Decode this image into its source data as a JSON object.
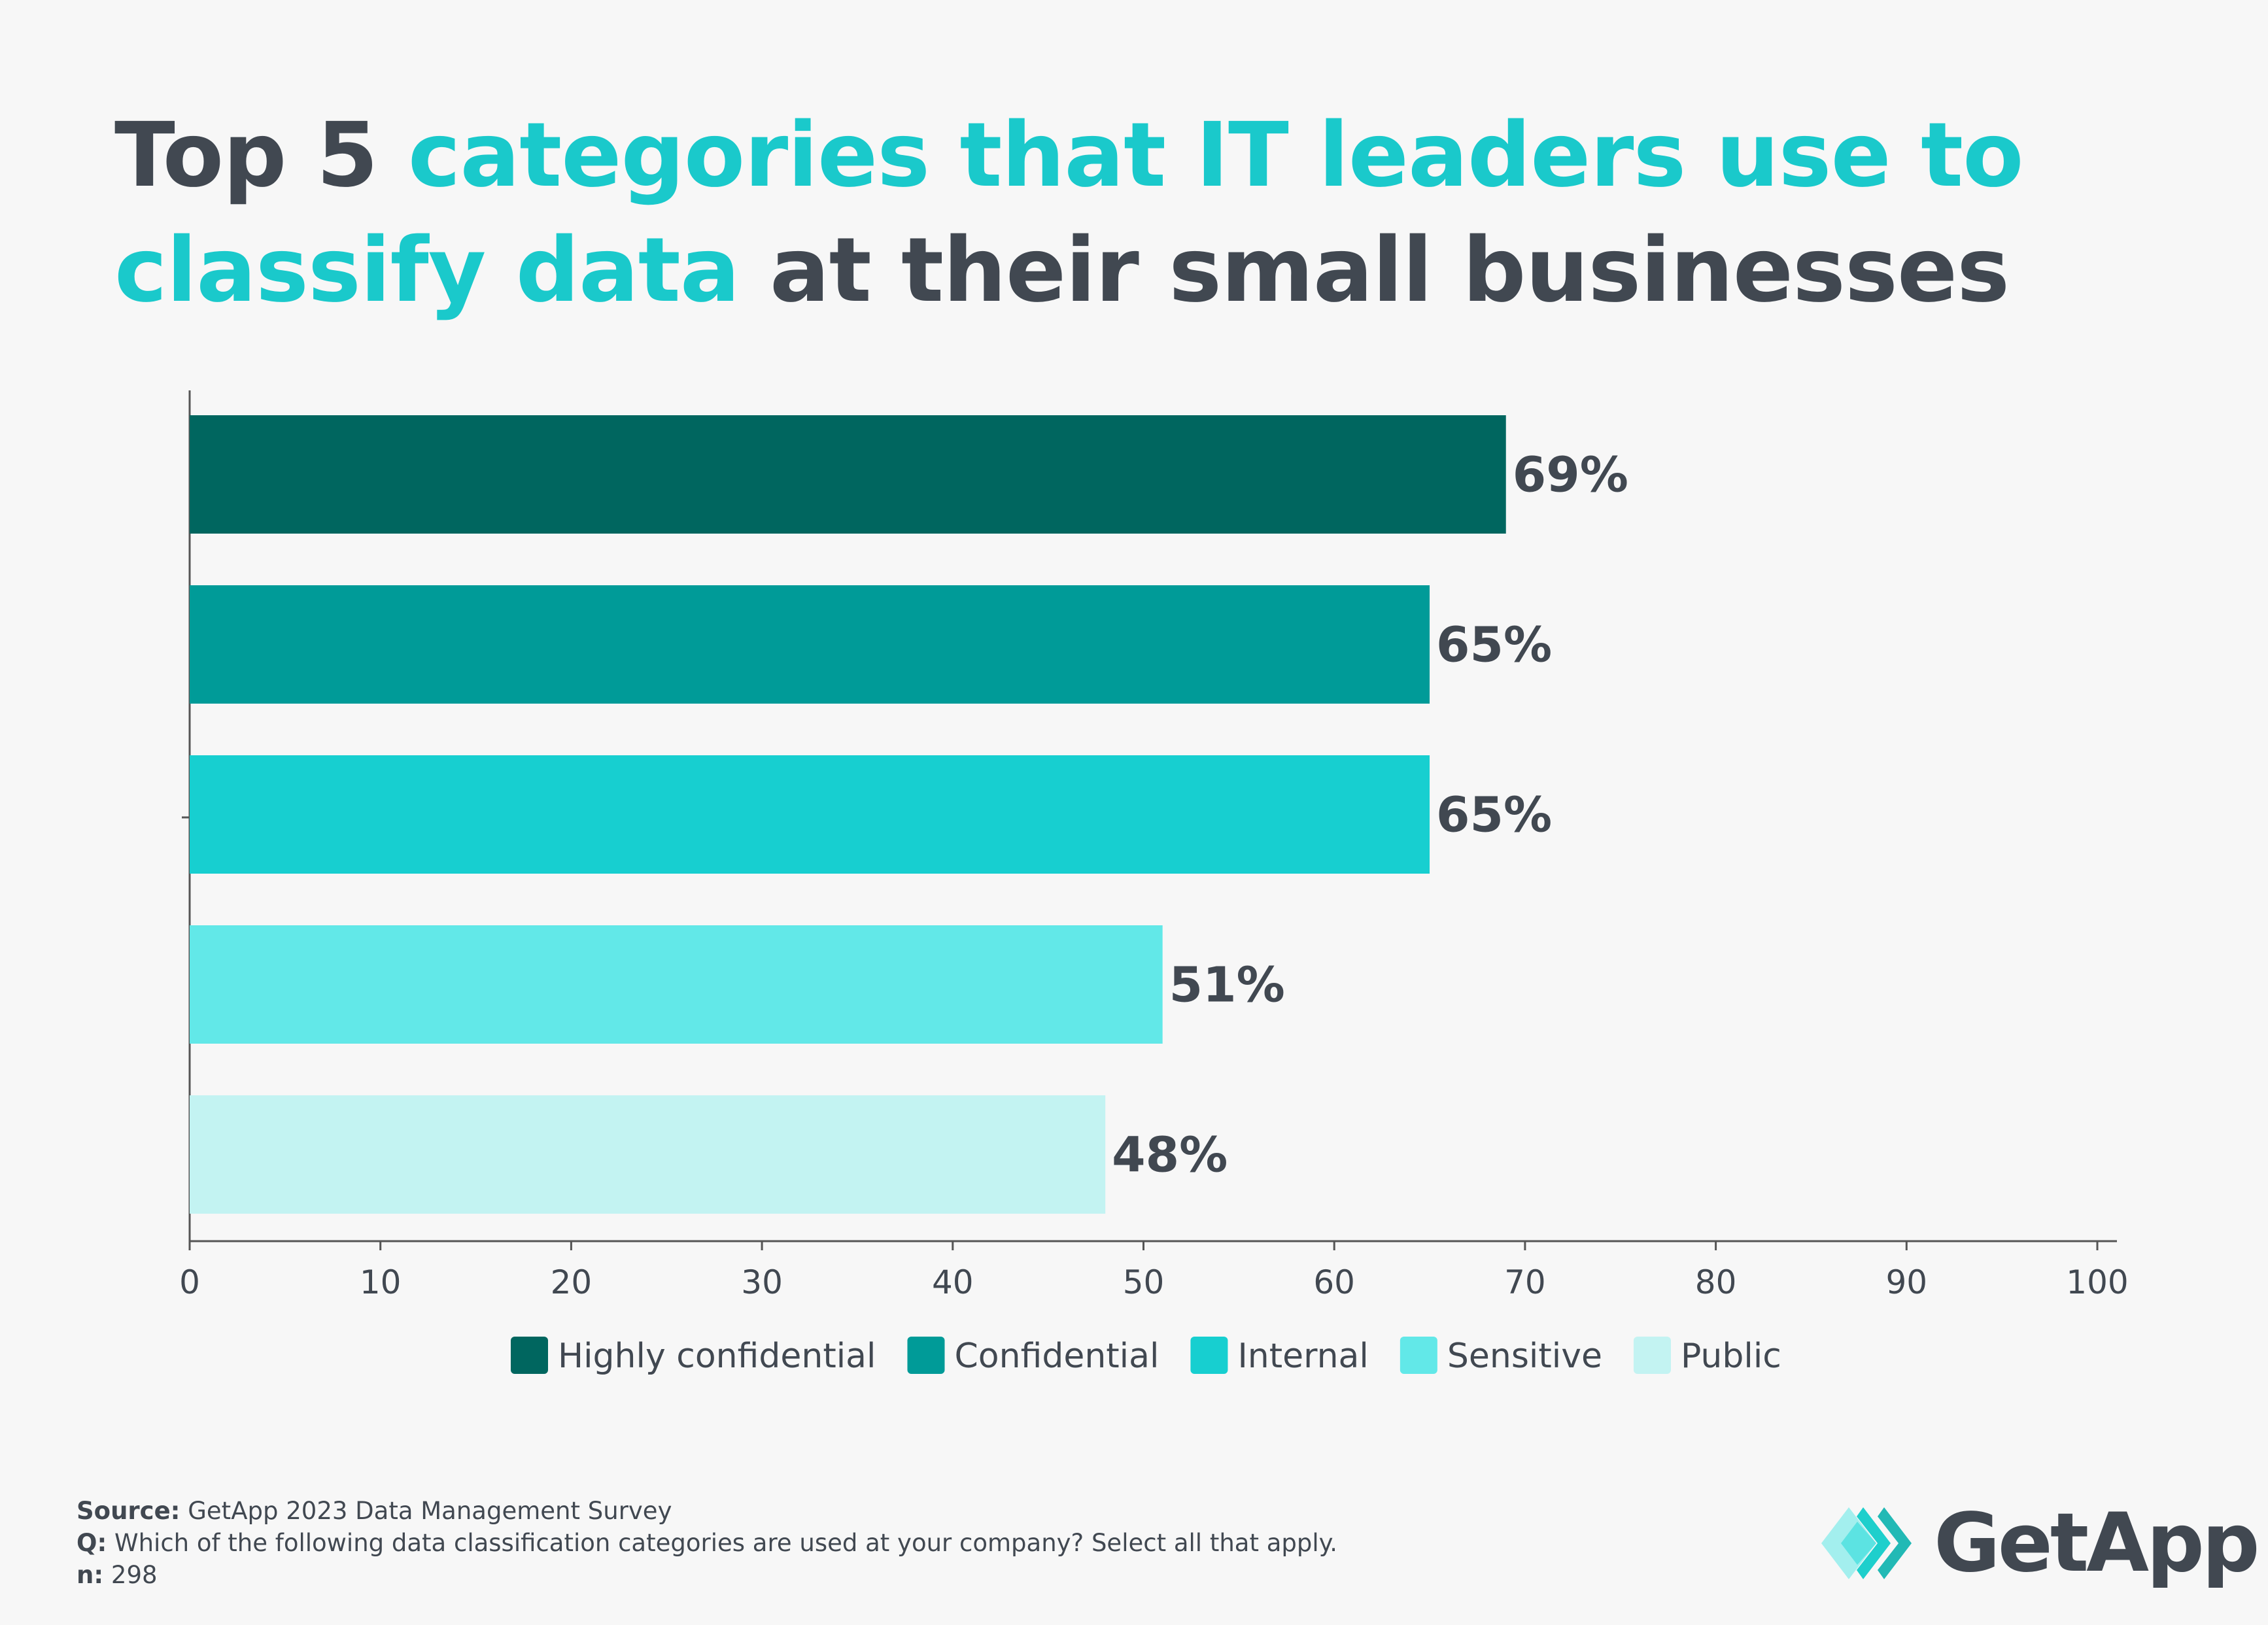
{
  "title": {
    "parts": [
      {
        "text": "Top 5 ",
        "highlight": false
      },
      {
        "text": "categories that IT leaders use to classify data",
        "highlight": true
      },
      {
        "text": " at their small businesses",
        "highlight": false
      }
    ]
  },
  "colors": {
    "title_dark": "#414851",
    "title_accent": "#1ac9cb",
    "background": "#f7f7f7"
  },
  "chart_data": {
    "type": "bar",
    "orientation": "horizontal",
    "categories": [
      "Highly confidential",
      "Confidential",
      "Internal",
      "Sensitive",
      "Public"
    ],
    "values": [
      69,
      65,
      65,
      51,
      48
    ],
    "data_labels": [
      "69%",
      "65%",
      "65%",
      "51%",
      "48%"
    ],
    "colors": [
      "#00665f",
      "#009b98",
      "#17cfd0",
      "#62e8e8",
      "#c3f3f2"
    ],
    "xlim": [
      0,
      100
    ],
    "xticks": [
      "0",
      "10",
      "20",
      "30",
      "40",
      "50",
      "60",
      "70",
      "80",
      "90",
      "100"
    ],
    "grid": false,
    "legend": {
      "placement": "bottom",
      "entries": [
        "Highly confidential",
        "Confidential",
        "Internal",
        "Sensitive",
        "Public"
      ]
    }
  },
  "footer": {
    "source_label": "Source:",
    "source_text": " GetApp 2023 Data Management Survey",
    "q_label": "Q:",
    "q_text": " Which of the following data classification categories are used at your company? Select all that apply.",
    "n_label": "n:",
    "n_text": " 298"
  },
  "logo": {
    "text": "GetApp",
    "icon": "getapp-chevrons-icon"
  }
}
